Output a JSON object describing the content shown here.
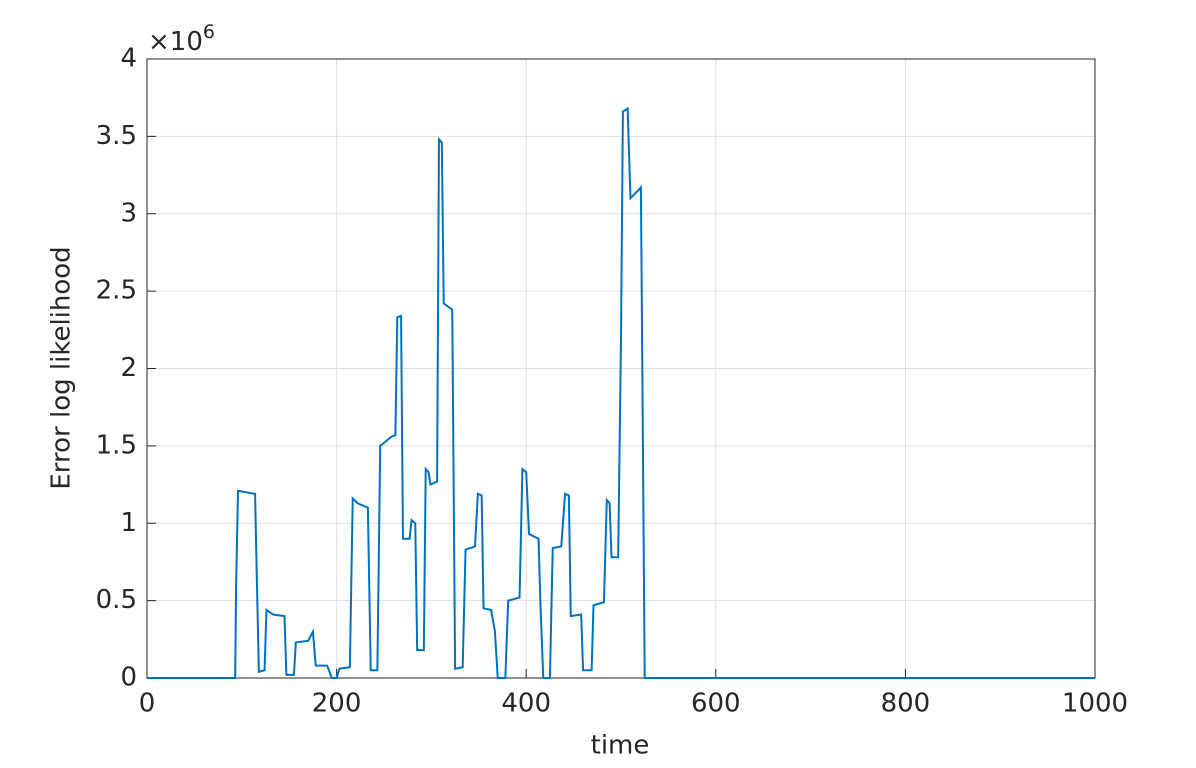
{
  "chart_data": {
    "type": "line",
    "xlabel": "time",
    "ylabel": "Error log likelihood",
    "multiplier_base": "×10",
    "multiplier_exponent": "6",
    "x": [
      0,
      93,
      94,
      96,
      105,
      114,
      116,
      118,
      124,
      126,
      133,
      145,
      147,
      155,
      157,
      170,
      175,
      178,
      190,
      195,
      200,
      203,
      214,
      217,
      222,
      233,
      236,
      243,
      246,
      258,
      262,
      264,
      268,
      270,
      277,
      279,
      283,
      285,
      292,
      294,
      297,
      299,
      306,
      308,
      311,
      313,
      322,
      325,
      333,
      336,
      346,
      349,
      353,
      355,
      363,
      367,
      370,
      378,
      381,
      393,
      396,
      400,
      403,
      413,
      415,
      418,
      425,
      428,
      437,
      441,
      445,
      447,
      458,
      460,
      469,
      471,
      482,
      485,
      488,
      490,
      497,
      500,
      502,
      507,
      510,
      521,
      523,
      525,
      1000
    ],
    "values": [
      0,
      0,
      0.6,
      1.21,
      1.2,
      1.19,
      0.6,
      0.04,
      0.05,
      0.44,
      0.41,
      0.4,
      0.02,
      0.02,
      0.23,
      0.24,
      0.3,
      0.08,
      0.08,
      0,
      0,
      0.06,
      0.07,
      1.16,
      1.13,
      1.1,
      0.05,
      0.05,
      1.5,
      1.56,
      1.57,
      2.33,
      2.34,
      0.9,
      0.9,
      1.02,
      1.0,
      0.18,
      0.18,
      1.35,
      1.33,
      1.25,
      1.27,
      3.48,
      3.46,
      2.42,
      2.38,
      0.06,
      0.07,
      0.83,
      0.85,
      1.19,
      1.18,
      0.45,
      0.44,
      0.3,
      0,
      0,
      0.5,
      0.52,
      1.35,
      1.33,
      0.93,
      0.9,
      0.48,
      0,
      0,
      0.84,
      0.85,
      1.19,
      1.18,
      0.4,
      0.41,
      0.05,
      0.05,
      0.47,
      0.49,
      1.15,
      1.13,
      0.78,
      0.78,
      2.2,
      3.66,
      3.68,
      3.1,
      3.17,
      1.6,
      0,
      0
    ],
    "color": "#0072bd",
    "xlim": [
      0,
      1000
    ],
    "xticks": [
      0,
      200,
      400,
      600,
      800,
      1000
    ],
    "ylim": [
      0,
      4
    ],
    "yticks": [
      0,
      0.5,
      1,
      1.5,
      2,
      2.5,
      3,
      3.5,
      4
    ],
    "grid": true
  }
}
